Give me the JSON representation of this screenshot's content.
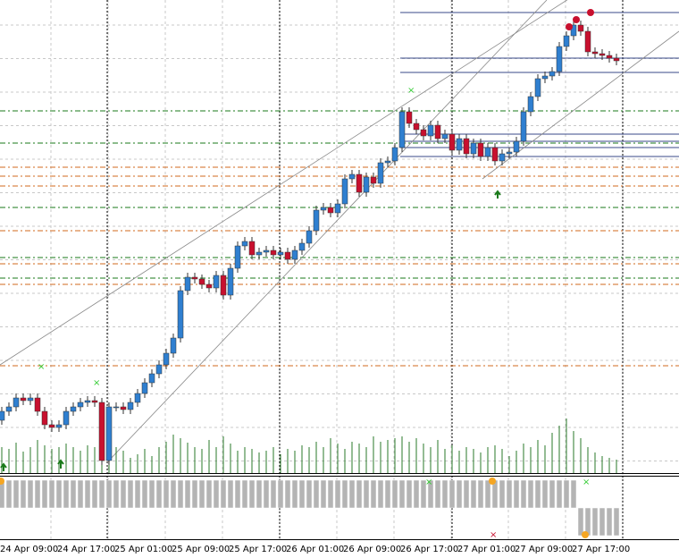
{
  "chart_data": [
    {
      "type": "candlestick",
      "categories": [
        "24 Apr 09:00",
        null,
        null,
        null,
        null,
        null,
        null,
        null,
        "24 Apr 17:00",
        null,
        null,
        null,
        null,
        null,
        null,
        null,
        "25 Apr 01:00",
        null,
        null,
        null,
        null,
        null,
        null,
        null,
        "25 Apr 09:00",
        null,
        null,
        null,
        null,
        null,
        null,
        null,
        "25 Apr 17:00",
        null,
        null,
        null,
        null,
        null,
        null,
        null,
        "26 Apr 01:00",
        null,
        null,
        null,
        null,
        null,
        null,
        null,
        "26 Apr 09:00",
        null,
        null,
        null,
        null,
        null,
        null,
        null,
        "26 Apr 17:00",
        null,
        null,
        null,
        null,
        null,
        null,
        null,
        "27 Apr 01:00",
        null,
        null,
        null,
        null,
        null,
        null,
        null,
        "27 Apr 09:00",
        null,
        null,
        null,
        null,
        null,
        null,
        null,
        "27 Apr 17:00",
        null,
        null,
        null,
        null,
        null,
        null
      ],
      "open": [
        60,
        70,
        75,
        85,
        82,
        85,
        70,
        55,
        52,
        55,
        70,
        75,
        80,
        82,
        80,
        15,
        75,
        75,
        72,
        80,
        90,
        102,
        112,
        122,
        135,
        152,
        205,
        220,
        218,
        212,
        208,
        222,
        200,
        230,
        255,
        260,
        245,
        248,
        250,
        245,
        248,
        240,
        250,
        258,
        272,
        295,
        298,
        292,
        302,
        330,
        335,
        315,
        332,
        325,
        348,
        350,
        365,
        405,
        392,
        385,
        378,
        390,
        375,
        380,
        362,
        375,
        358,
        370,
        355,
        365,
        350,
        358,
        360,
        372,
        405,
        422,
        442,
        445,
        450,
        478,
        490,
        502,
        495,
        472,
        470,
        468,
        465
      ],
      "high": [
        75,
        80,
        90,
        90,
        90,
        90,
        75,
        60,
        60,
        75,
        80,
        85,
        87,
        87,
        85,
        80,
        80,
        80,
        85,
        95,
        107,
        117,
        127,
        140,
        157,
        210,
        225,
        225,
        223,
        217,
        227,
        227,
        235,
        260,
        265,
        265,
        253,
        255,
        255,
        253,
        253,
        255,
        263,
        277,
        300,
        303,
        303,
        307,
        335,
        340,
        340,
        337,
        337,
        353,
        355,
        370,
        410,
        410,
        397,
        390,
        395,
        395,
        385,
        385,
        380,
        380,
        375,
        375,
        370,
        370,
        363,
        365,
        377,
        410,
        427,
        447,
        450,
        455,
        483,
        495,
        507,
        507,
        500,
        477,
        475,
        473,
        470
      ],
      "low": [
        55,
        65,
        70,
        77,
        77,
        65,
        50,
        47,
        47,
        50,
        65,
        70,
        75,
        75,
        10,
        10,
        70,
        67,
        67,
        75,
        85,
        97,
        107,
        117,
        130,
        147,
        200,
        213,
        207,
        203,
        203,
        195,
        195,
        225,
        250,
        240,
        240,
        243,
        240,
        240,
        235,
        235,
        245,
        253,
        267,
        290,
        287,
        287,
        297,
        325,
        310,
        310,
        320,
        320,
        343,
        345,
        360,
        387,
        380,
        373,
        373,
        370,
        370,
        357,
        357,
        353,
        353,
        350,
        350,
        345,
        345,
        353,
        355,
        367,
        400,
        417,
        437,
        440,
        445,
        473,
        485,
        490,
        467,
        465,
        463,
        460,
        457
      ],
      "close": [
        70,
        75,
        85,
        82,
        85,
        70,
        55,
        52,
        55,
        70,
        75,
        80,
        82,
        80,
        15,
        75,
        75,
        72,
        80,
        90,
        102,
        112,
        122,
        135,
        152,
        205,
        220,
        218,
        212,
        208,
        222,
        200,
        230,
        255,
        260,
        245,
        248,
        250,
        245,
        248,
        240,
        250,
        258,
        272,
        295,
        298,
        292,
        302,
        330,
        335,
        315,
        332,
        325,
        348,
        350,
        365,
        405,
        392,
        385,
        378,
        390,
        375,
        380,
        362,
        375,
        358,
        370,
        355,
        365,
        350,
        358,
        360,
        372,
        405,
        422,
        442,
        445,
        450,
        478,
        490,
        502,
        495,
        472,
        470,
        468,
        465,
        462
      ],
      "volume": [
        30,
        28,
        35,
        25,
        30,
        38,
        32,
        28,
        30,
        34,
        30,
        26,
        32,
        30,
        45,
        42,
        30,
        26,
        18,
        22,
        28,
        20,
        30,
        36,
        44,
        40,
        35,
        30,
        28,
        38,
        30,
        42,
        34,
        26,
        30,
        28,
        24,
        26,
        30,
        22,
        28,
        26,
        32,
        30,
        36,
        30,
        40,
        34,
        28,
        36,
        34,
        30,
        42,
        36,
        38,
        40,
        42,
        36,
        40,
        34,
        30,
        38,
        28,
        32,
        26,
        30,
        28,
        24,
        30,
        32,
        28,
        20,
        26,
        34,
        30,
        38,
        32,
        46,
        54,
        62,
        48,
        40,
        30,
        24,
        20,
        18,
        16
      ],
      "ylim": [
        0,
        530
      ],
      "y2lim": [
        0,
        530
      ],
      "up_color": "#2f7fd0",
      "down_color": "#c8102e",
      "volume_color": "#2a7a2a",
      "levels": [
        {
          "value": 406,
          "color": "#1a7a1a"
        },
        {
          "value": 370,
          "color": "#1a7a1a"
        },
        {
          "value": 298,
          "color": "#1a7a1a"
        },
        {
          "value": 242,
          "color": "#1a7a1a"
        },
        {
          "value": 219,
          "color": "#1a7a1a"
        },
        {
          "value": 343,
          "color": "#d2691e"
        },
        {
          "value": 333,
          "color": "#d2691e"
        },
        {
          "value": 322,
          "color": "#d2691e"
        },
        {
          "value": 272,
          "color": "#d2691e"
        },
        {
          "value": 235,
          "color": "#d2691e"
        },
        {
          "value": 212,
          "color": "#d2691e"
        },
        {
          "value": 121,
          "color": "#d2691e"
        }
      ],
      "zone_levels": [
        516,
        465,
        449,
        380,
        372,
        365,
        355
      ],
      "zone_color": "#3a4a8a"
    },
    {
      "type": "bar",
      "values": [
        1,
        1,
        1,
        1,
        1,
        1,
        1,
        1,
        1,
        1,
        1,
        1,
        1,
        1,
        1,
        1,
        1,
        1,
        1,
        1,
        1,
        1,
        1,
        1,
        1,
        1,
        1,
        1,
        1,
        1,
        1,
        1,
        1,
        1,
        1,
        1,
        1,
        1,
        1,
        1,
        1,
        1,
        1,
        1,
        1,
        1,
        1,
        1,
        1,
        1,
        1,
        1,
        1,
        1,
        1,
        1,
        1,
        1,
        1,
        1,
        1,
        1,
        1,
        1,
        1,
        1,
        1,
        1,
        1,
        1,
        1,
        1,
        1,
        1,
        1,
        1,
        1,
        1,
        1,
        1,
        1,
        -1,
        -1,
        -1,
        -1,
        -1,
        -1
      ],
      "ylim": [
        -1,
        1
      ],
      "color": "#b4b4b4"
    }
  ]
}
